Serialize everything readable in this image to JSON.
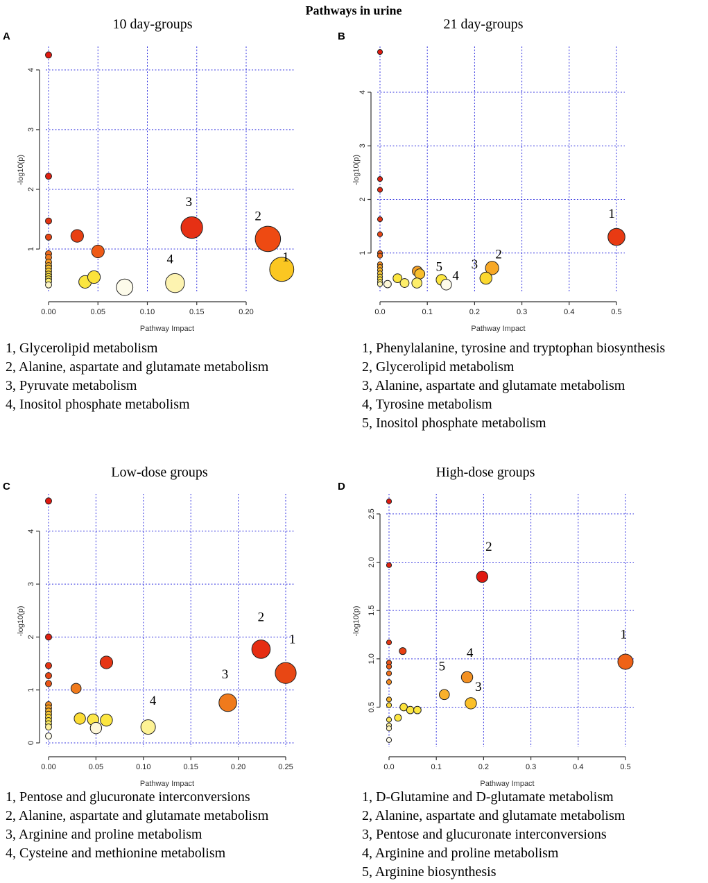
{
  "figure_title": "Pathways in urine",
  "chart_data": [
    {
      "panel": "A",
      "type": "scatter",
      "title": "10 day-groups",
      "xlabel": "Pathway Impact",
      "ylabel": "-log10(p)",
      "xlim": [
        0,
        0.24
      ],
      "ylim": [
        0.35,
        4.3
      ],
      "xticks": [
        0,
        0.05,
        0.1,
        0.15,
        0.2
      ],
      "xtick_labels": [
        "0.00",
        "0.05",
        "0.10",
        "0.15",
        "0.20"
      ],
      "yticks": [
        1,
        2,
        3,
        4
      ],
      "ytick_labels": [
        "1",
        "2",
        "3",
        "4"
      ],
      "points": [
        {
          "x": 0.0,
          "y": 4.25,
          "size": 1,
          "color": "#e0180f"
        },
        {
          "x": 0.0,
          "y": 2.22,
          "size": 1,
          "color": "#e01f10"
        },
        {
          "x": 0.0,
          "y": 1.47,
          "size": 1,
          "color": "#e53312"
        },
        {
          "x": 0.0,
          "y": 1.2,
          "size": 1,
          "color": "#e84514"
        },
        {
          "x": 0.0,
          "y": 0.92,
          "size": 1,
          "color": "#f06a1a"
        },
        {
          "x": 0.0,
          "y": 0.86,
          "size": 1,
          "color": "#f27a1d"
        },
        {
          "x": 0.0,
          "y": 0.78,
          "size": 1,
          "color": "#f59a22"
        },
        {
          "x": 0.0,
          "y": 0.72,
          "size": 1,
          "color": "#f7b02a"
        },
        {
          "x": 0.0,
          "y": 0.68,
          "size": 1,
          "color": "#f8c030"
        },
        {
          "x": 0.0,
          "y": 0.63,
          "size": 1,
          "color": "#f9cc34"
        },
        {
          "x": 0.0,
          "y": 0.58,
          "size": 1,
          "color": "#fad83a"
        },
        {
          "x": 0.0,
          "y": 0.54,
          "size": 1,
          "color": "#fbe040"
        },
        {
          "x": 0.0,
          "y": 0.5,
          "size": 1,
          "color": "#fce54a"
        },
        {
          "x": 0.0,
          "y": 0.46,
          "size": 1,
          "color": "#fdee70"
        },
        {
          "x": 0.0,
          "y": 0.4,
          "size": 1,
          "color": "#fdf6c8"
        },
        {
          "x": 0.029,
          "y": 1.22,
          "size": 2,
          "color": "#e84012"
        },
        {
          "x": 0.05,
          "y": 0.96,
          "size": 2,
          "color": "#ef5a16"
        },
        {
          "x": 0.037,
          "y": 0.45,
          "size": 2,
          "color": "#fbe640"
        },
        {
          "x": 0.046,
          "y": 0.53,
          "size": 2,
          "color": "#fce23a"
        },
        {
          "x": 0.077,
          "y": 0.36,
          "size": 2.6,
          "color": "#fdfbea"
        },
        {
          "x": 0.145,
          "y": 1.36,
          "size": 3.4,
          "color": "#e63014"
        },
        {
          "x": 0.128,
          "y": 0.43,
          "size": 3,
          "color": "#fdf3b0"
        },
        {
          "x": 0.222,
          "y": 1.17,
          "size": 4,
          "color": "#ee4a12"
        },
        {
          "x": 0.236,
          "y": 0.66,
          "size": 3.8,
          "color": "#fbc722"
        }
      ],
      "annotations": [
        {
          "text": "1",
          "x": 0.24,
          "y": 0.8
        },
        {
          "text": "2",
          "x": 0.212,
          "y": 1.48
        },
        {
          "text": "3",
          "x": 0.142,
          "y": 1.72
        },
        {
          "text": "4",
          "x": 0.123,
          "y": 0.76
        }
      ],
      "legend": [
        "1, Glycerolipid metabolism",
        "2, Alanine, aspartate and glutamate metabolism",
        "3, Pyruvate metabolism",
        "4, Inositol phosphate metabolism"
      ]
    },
    {
      "panel": "B",
      "type": "scatter",
      "title": "21 day-groups",
      "xlabel": "Pathway Impact",
      "ylabel": "-log10(p)",
      "xlim": [
        0,
        0.5
      ],
      "ylim": [
        0.35,
        4.75
      ],
      "xticks": [
        0,
        0.1,
        0.2,
        0.3,
        0.4,
        0.5
      ],
      "xtick_labels": [
        "0.0",
        "0.1",
        "0.2",
        "0.3",
        "0.4",
        "0.5"
      ],
      "yticks": [
        1,
        2,
        3,
        4
      ],
      "ytick_labels": [
        "1",
        "2",
        "3",
        "4"
      ],
      "points": [
        {
          "x": 0.0,
          "y": 4.75,
          "size": 0.8,
          "color": "#e0180f"
        },
        {
          "x": 0.0,
          "y": 2.38,
          "size": 0.8,
          "color": "#e02010"
        },
        {
          "x": 0.0,
          "y": 2.18,
          "size": 0.8,
          "color": "#e22812"
        },
        {
          "x": 0.0,
          "y": 1.63,
          "size": 0.8,
          "color": "#e53312"
        },
        {
          "x": 0.0,
          "y": 1.35,
          "size": 0.8,
          "color": "#e84514"
        },
        {
          "x": 0.0,
          "y": 1.0,
          "size": 0.8,
          "color": "#ee5a17"
        },
        {
          "x": 0.0,
          "y": 0.95,
          "size": 0.8,
          "color": "#f06a1a"
        },
        {
          "x": 0.0,
          "y": 0.79,
          "size": 0.8,
          "color": "#f38a1f"
        },
        {
          "x": 0.0,
          "y": 0.74,
          "size": 0.8,
          "color": "#f5a024"
        },
        {
          "x": 0.0,
          "y": 0.68,
          "size": 0.8,
          "color": "#f7b42a"
        },
        {
          "x": 0.0,
          "y": 0.62,
          "size": 0.8,
          "color": "#f9c832"
        },
        {
          "x": 0.0,
          "y": 0.56,
          "size": 0.8,
          "color": "#fad83a"
        },
        {
          "x": 0.0,
          "y": 0.51,
          "size": 0.8,
          "color": "#fce244"
        },
        {
          "x": 0.0,
          "y": 0.46,
          "size": 0.8,
          "color": "#fdec70"
        },
        {
          "x": 0.0,
          "y": 0.42,
          "size": 0.8,
          "color": "#fdf5b0"
        },
        {
          "x": 0.016,
          "y": 0.42,
          "size": 1.2,
          "color": "#fdf8d8"
        },
        {
          "x": 0.037,
          "y": 0.53,
          "size": 1.4,
          "color": "#fce640"
        },
        {
          "x": 0.052,
          "y": 0.44,
          "size": 1.4,
          "color": "#fdee6a"
        },
        {
          "x": 0.079,
          "y": 0.66,
          "size": 1.6,
          "color": "#f5a025"
        },
        {
          "x": 0.084,
          "y": 0.61,
          "size": 1.6,
          "color": "#f9bf2c"
        },
        {
          "x": 0.078,
          "y": 0.44,
          "size": 1.6,
          "color": "#fdee6a"
        },
        {
          "x": 0.13,
          "y": 0.5,
          "size": 1.7,
          "color": "#fce640"
        },
        {
          "x": 0.14,
          "y": 0.41,
          "size": 1.7,
          "color": "#fdfbea"
        },
        {
          "x": 0.224,
          "y": 0.53,
          "size": 1.9,
          "color": "#fbd82e"
        },
        {
          "x": 0.237,
          "y": 0.72,
          "size": 2.1,
          "color": "#f7a826"
        },
        {
          "x": 0.5,
          "y": 1.3,
          "size": 2.7,
          "color": "#e83a13"
        }
      ],
      "annotations": [
        {
          "text": "1",
          "x": 0.49,
          "y": 1.66
        },
        {
          "text": "2",
          "x": 0.251,
          "y": 0.9
        },
        {
          "text": "3",
          "x": 0.2,
          "y": 0.71
        },
        {
          "text": "4",
          "x": 0.16,
          "y": 0.5
        },
        {
          "text": "5",
          "x": 0.125,
          "y": 0.67
        }
      ],
      "legend": [
        "1, Phenylalanine, tyrosine and tryptophan biosynthesis",
        "2, Glycerolipid metabolism",
        "3, Alanine, aspartate and glutamate metabolism",
        "4, Tyrosine metabolism",
        "5, Inositol phosphate metabolism"
      ]
    },
    {
      "panel": "C",
      "type": "scatter",
      "title": "Low-dose groups",
      "xlabel": "Pathway Impact",
      "ylabel": "-log10(p)",
      "xlim": [
        0,
        0.25
      ],
      "ylim": [
        0,
        4.6
      ],
      "xticks": [
        0,
        0.05,
        0.1,
        0.15,
        0.2,
        0.25
      ],
      "xtick_labels": [
        "0.00",
        "0.05",
        "0.10",
        "0.15",
        "0.20",
        "0.25"
      ],
      "yticks": [
        0,
        1,
        2,
        3,
        4
      ],
      "ytick_labels": [
        "0",
        "1",
        "2",
        "3",
        "4"
      ],
      "points": [
        {
          "x": 0.0,
          "y": 4.57,
          "size": 1,
          "color": "#e0180f"
        },
        {
          "x": 0.0,
          "y": 2.0,
          "size": 1,
          "color": "#e02010"
        },
        {
          "x": 0.0,
          "y": 1.46,
          "size": 1,
          "color": "#e53312"
        },
        {
          "x": 0.0,
          "y": 1.27,
          "size": 1,
          "color": "#e84514"
        },
        {
          "x": 0.0,
          "y": 1.12,
          "size": 1,
          "color": "#ec5516"
        },
        {
          "x": 0.0,
          "y": 0.72,
          "size": 1,
          "color": "#f38a1f"
        },
        {
          "x": 0.0,
          "y": 0.66,
          "size": 1,
          "color": "#f5a024"
        },
        {
          "x": 0.0,
          "y": 0.6,
          "size": 1,
          "color": "#f7b42a"
        },
        {
          "x": 0.0,
          "y": 0.54,
          "size": 1,
          "color": "#f9c832"
        },
        {
          "x": 0.0,
          "y": 0.48,
          "size": 1,
          "color": "#fad83a"
        },
        {
          "x": 0.0,
          "y": 0.42,
          "size": 1,
          "color": "#fce244"
        },
        {
          "x": 0.0,
          "y": 0.36,
          "size": 1,
          "color": "#fdec60"
        },
        {
          "x": 0.0,
          "y": 0.3,
          "size": 1,
          "color": "#fdf09a"
        },
        {
          "x": 0.0,
          "y": 0.13,
          "size": 1,
          "color": "#fdfbea"
        },
        {
          "x": 0.029,
          "y": 1.03,
          "size": 1.6,
          "color": "#f07a1c"
        },
        {
          "x": 0.061,
          "y": 1.52,
          "size": 2,
          "color": "#e63514"
        },
        {
          "x": 0.033,
          "y": 0.46,
          "size": 1.8,
          "color": "#fcdc34"
        },
        {
          "x": 0.047,
          "y": 0.44,
          "size": 1.8,
          "color": "#fce64a"
        },
        {
          "x": 0.05,
          "y": 0.28,
          "size": 1.8,
          "color": "#fdf6d8"
        },
        {
          "x": 0.061,
          "y": 0.43,
          "size": 1.9,
          "color": "#fce640"
        },
        {
          "x": 0.105,
          "y": 0.3,
          "size": 2.3,
          "color": "#fdf294"
        },
        {
          "x": 0.189,
          "y": 0.76,
          "size": 2.8,
          "color": "#f07a1c"
        },
        {
          "x": 0.224,
          "y": 1.77,
          "size": 2.9,
          "color": "#e62d12"
        },
        {
          "x": 0.25,
          "y": 1.32,
          "size": 3.3,
          "color": "#e84714"
        }
      ],
      "annotations": [
        {
          "text": "1",
          "x": 0.257,
          "y": 1.88
        },
        {
          "text": "2",
          "x": 0.224,
          "y": 2.3
        },
        {
          "text": "3",
          "x": 0.186,
          "y": 1.22
        },
        {
          "text": "4",
          "x": 0.11,
          "y": 0.72
        }
      ],
      "legend": [
        "1, Pentose and glucuronate interconversions",
        "2, Alanine, aspartate and glutamate metabolism",
        "3, Arginine and proline metabolism",
        "4, Cysteine and methionine metabolism"
      ]
    },
    {
      "panel": "D",
      "type": "scatter",
      "title": "High-dose groups",
      "xlabel": "Pathway Impact",
      "ylabel": "-log10(p)",
      "xlim": [
        0,
        0.5
      ],
      "ylim": [
        0.13,
        2.65
      ],
      "xticks": [
        0,
        0.1,
        0.2,
        0.3,
        0.4,
        0.5
      ],
      "xtick_labels": [
        "0.0",
        "0.1",
        "0.2",
        "0.3",
        "0.4",
        "0.5"
      ],
      "yticks": [
        0.5,
        1.0,
        1.5,
        2.0,
        2.5
      ],
      "ytick_labels": [
        "0.5",
        "1.0",
        "1.5",
        "2.0",
        "2.5"
      ],
      "points": [
        {
          "x": 0.0,
          "y": 2.63,
          "size": 0.8,
          "color": "#e0180f"
        },
        {
          "x": 0.0,
          "y": 1.97,
          "size": 0.8,
          "color": "#e02010"
        },
        {
          "x": 0.0,
          "y": 1.17,
          "size": 0.8,
          "color": "#e63512"
        },
        {
          "x": 0.0,
          "y": 0.96,
          "size": 0.8,
          "color": "#ec5216"
        },
        {
          "x": 0.0,
          "y": 0.92,
          "size": 0.8,
          "color": "#ee5e18"
        },
        {
          "x": 0.0,
          "y": 0.85,
          "size": 0.8,
          "color": "#f06e1a"
        },
        {
          "x": 0.0,
          "y": 0.76,
          "size": 0.8,
          "color": "#f38a1f"
        },
        {
          "x": 0.0,
          "y": 0.58,
          "size": 0.8,
          "color": "#f7b42a"
        },
        {
          "x": 0.0,
          "y": 0.52,
          "size": 0.8,
          "color": "#fad83a"
        },
        {
          "x": 0.0,
          "y": 0.37,
          "size": 0.8,
          "color": "#fce85a"
        },
        {
          "x": 0.0,
          "y": 0.31,
          "size": 0.8,
          "color": "#fdf09a"
        },
        {
          "x": 0.0,
          "y": 0.28,
          "size": 0.8,
          "color": "#fdf4c0"
        },
        {
          "x": 0.0,
          "y": 0.16,
          "size": 0.8,
          "color": "#fdfbea"
        },
        {
          "x": 0.019,
          "y": 0.39,
          "size": 1.1,
          "color": "#fce640"
        },
        {
          "x": 0.031,
          "y": 0.5,
          "size": 1.2,
          "color": "#fce23a"
        },
        {
          "x": 0.045,
          "y": 0.47,
          "size": 1.2,
          "color": "#fce640"
        },
        {
          "x": 0.06,
          "y": 0.47,
          "size": 1.2,
          "color": "#fce640"
        },
        {
          "x": 0.029,
          "y": 1.08,
          "size": 1.1,
          "color": "#e84013"
        },
        {
          "x": 0.117,
          "y": 0.63,
          "size": 1.6,
          "color": "#f9b02a"
        },
        {
          "x": 0.165,
          "y": 0.81,
          "size": 1.8,
          "color": "#f39123"
        },
        {
          "x": 0.173,
          "y": 0.54,
          "size": 1.8,
          "color": "#fbc028"
        },
        {
          "x": 0.197,
          "y": 1.85,
          "size": 1.8,
          "color": "#e0180f"
        },
        {
          "x": 0.5,
          "y": 0.97,
          "size": 2.4,
          "color": "#ef6217"
        }
      ],
      "annotations": [
        {
          "text": "1",
          "x": 0.496,
          "y": 1.21
        },
        {
          "text": "2",
          "x": 0.211,
          "y": 2.12
        },
        {
          "text": "3",
          "x": 0.189,
          "y": 0.67
        },
        {
          "text": "4",
          "x": 0.171,
          "y": 1.02
        },
        {
          "text": "5",
          "x": 0.112,
          "y": 0.88
        }
      ],
      "legend": [
        "1, D-Glutamine and D-glutamate metabolism",
        "2, Alanine, aspartate and glutamate metabolism",
        "3, Pentose and glucuronate interconversions",
        "4, Arginine and proline metabolism",
        "5, Arginine biosynthesis"
      ]
    }
  ]
}
